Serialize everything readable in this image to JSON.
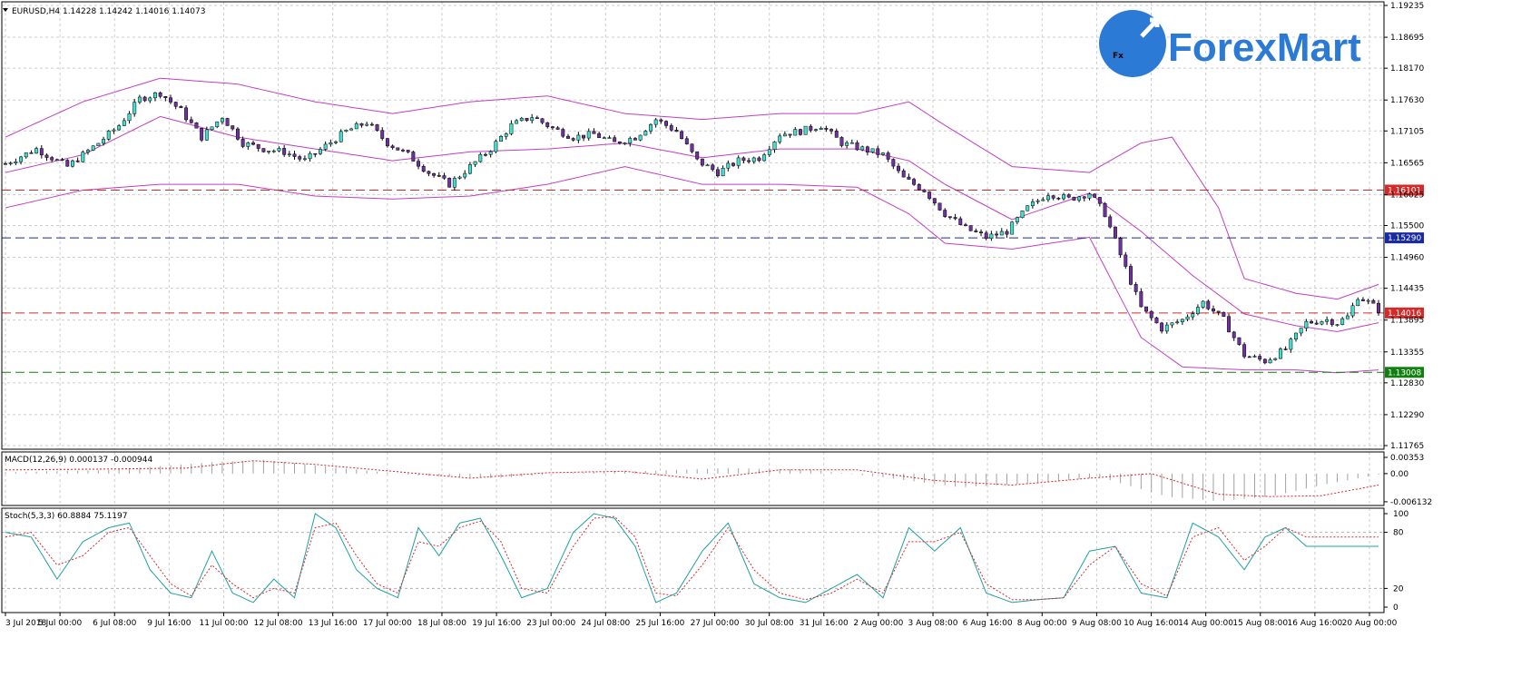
{
  "header": {
    "symbol_line": "EURUSD,H4  1.14228 1.14242 1.14016 1.14073",
    "dropdown_icon": "triangle-down-icon"
  },
  "logo": {
    "badge": "Fx",
    "brand": "ForexMart",
    "colors": {
      "badge": "#2b7ad6",
      "text": "#2b7ad6"
    }
  },
  "colors": {
    "bull": "#40e0d0",
    "bear": "#7030a0",
    "bands": "#c040c0",
    "level_red": "#d42a2a",
    "level_blue": "#1a2aa0",
    "level_green": "#108010",
    "macd_hist": "#a0a0a0",
    "macd_signal": "#d42a2a",
    "stoch_main": "#20a0a0",
    "stoch_signal": "#d42a2a",
    "grid": "#cccccc"
  },
  "x_axis_labels": [
    "3 Jul 2018",
    "5 Jul 00:00",
    "6 Jul 08:00",
    "9 Jul 16:00",
    "11 Jul 00:00",
    "12 Jul 08:00",
    "13 Jul 16:00",
    "17 Jul 00:00",
    "18 Jul 08:00",
    "19 Jul 16:00",
    "23 Jul 00:00",
    "24 Jul 08:00",
    "25 Jul 16:00",
    "27 Jul 00:00",
    "30 Jul 08:00",
    "31 Jul 16:00",
    "2 Aug 00:00",
    "3 Aug 08:00",
    "6 Aug 16:00",
    "8 Aug 00:00",
    "9 Aug 08:00",
    "10 Aug 16:00",
    "14 Aug 00:00",
    "15 Aug 08:00",
    "16 Aug 16:00",
    "20 Aug 00:00"
  ],
  "chart_data": [
    {
      "type": "candlestick",
      "title": "EURUSD,H4",
      "ylim": [
        1.11765,
        1.19235
      ],
      "y_ticks": [
        "1.19235",
        "1.18695",
        "1.18170",
        "1.17630",
        "1.17105",
        "1.16565",
        "1.16025",
        "1.15500",
        "1.14960",
        "1.14435",
        "1.13895",
        "1.13355",
        "1.12830",
        "1.12290",
        "1.11765"
      ],
      "grid": true,
      "levels": [
        {
          "value": 1.16101,
          "label": "1.16101",
          "style": "red"
        },
        {
          "value": 1.1529,
          "label": "1.15290",
          "style": "blue"
        },
        {
          "value": 1.14016,
          "label": "1.14016",
          "style": "red"
        },
        {
          "value": 1.13008,
          "label": "1.13008",
          "style": "green"
        }
      ],
      "close_path": [
        [
          0,
          1.1655
        ],
        [
          6,
          1.168
        ],
        [
          12,
          1.165
        ],
        [
          18,
          1.169
        ],
        [
          22,
          1.172
        ],
        [
          26,
          1.1765
        ],
        [
          30,
          1.1775
        ],
        [
          34,
          1.1745
        ],
        [
          38,
          1.17
        ],
        [
          42,
          1.1735
        ],
        [
          46,
          1.169
        ],
        [
          50,
          1.168
        ],
        [
          54,
          1.1675
        ],
        [
          58,
          1.166
        ],
        [
          62,
          1.1685
        ],
        [
          66,
          1.171
        ],
        [
          70,
          1.1725
        ],
        [
          74,
          1.169
        ],
        [
          78,
          1.167
        ],
        [
          82,
          1.164
        ],
        [
          86,
          1.162
        ],
        [
          90,
          1.165
        ],
        [
          94,
          1.168
        ],
        [
          98,
          1.172
        ],
        [
          102,
          1.1735
        ],
        [
          106,
          1.1715
        ],
        [
          110,
          1.17
        ],
        [
          114,
          1.1705
        ],
        [
          118,
          1.169
        ],
        [
          122,
          1.17
        ],
        [
          126,
          1.173
        ],
        [
          130,
          1.171
        ],
        [
          134,
          1.166
        ],
        [
          138,
          1.164
        ],
        [
          142,
          1.166
        ],
        [
          146,
          1.1665
        ],
        [
          150,
          1.1705
        ],
        [
          154,
          1.171
        ],
        [
          158,
          1.172
        ],
        [
          162,
          1.169
        ],
        [
          166,
          1.168
        ],
        [
          170,
          1.167
        ],
        [
          174,
          1.163
        ],
        [
          178,
          1.161
        ],
        [
          182,
          1.157
        ],
        [
          186,
          1.1545
        ],
        [
          190,
          1.153
        ],
        [
          194,
          1.154
        ],
        [
          198,
          1.158
        ],
        [
          202,
          1.1605
        ],
        [
          206,
          1.1595
        ],
        [
          210,
          1.1605
        ],
        [
          213,
          1.157
        ],
        [
          216,
          1.15
        ],
        [
          220,
          1.141
        ],
        [
          224,
          1.1375
        ],
        [
          228,
          1.139
        ],
        [
          232,
          1.142
        ],
        [
          236,
          1.139
        ],
        [
          240,
          1.133
        ],
        [
          244,
          1.132
        ],
        [
          248,
          1.134
        ],
        [
          252,
          1.1385
        ],
        [
          256,
          1.139
        ],
        [
          258,
          1.1385
        ],
        [
          260,
          1.1395
        ],
        [
          262,
          1.143
        ],
        [
          264,
          1.142
        ],
        [
          266,
          1.1407
        ]
      ],
      "bollinger_upper": [
        [
          0,
          1.17
        ],
        [
          15,
          1.176
        ],
        [
          30,
          1.18
        ],
        [
          45,
          1.179
        ],
        [
          60,
          1.176
        ],
        [
          75,
          1.174
        ],
        [
          90,
          1.176
        ],
        [
          105,
          1.177
        ],
        [
          120,
          1.174
        ],
        [
          135,
          1.173
        ],
        [
          150,
          1.174
        ],
        [
          165,
          1.174
        ],
        [
          175,
          1.176
        ],
        [
          182,
          1.172
        ],
        [
          195,
          1.165
        ],
        [
          210,
          1.164
        ],
        [
          220,
          1.169
        ],
        [
          226,
          1.17
        ],
        [
          235,
          1.158
        ],
        [
          240,
          1.146
        ],
        [
          250,
          1.1435
        ],
        [
          258,
          1.1425
        ],
        [
          266,
          1.145
        ]
      ],
      "bollinger_middle": [
        [
          0,
          1.164
        ],
        [
          15,
          1.167
        ],
        [
          30,
          1.1735
        ],
        [
          45,
          1.17
        ],
        [
          60,
          1.168
        ],
        [
          75,
          1.166
        ],
        [
          90,
          1.1675
        ],
        [
          105,
          1.168
        ],
        [
          120,
          1.169
        ],
        [
          135,
          1.1665
        ],
        [
          150,
          1.168
        ],
        [
          165,
          1.168
        ],
        [
          175,
          1.166
        ],
        [
          182,
          1.162
        ],
        [
          195,
          1.156
        ],
        [
          210,
          1.1605
        ],
        [
          220,
          1.154
        ],
        [
          230,
          1.1465
        ],
        [
          240,
          1.14
        ],
        [
          250,
          1.138
        ],
        [
          258,
          1.137
        ],
        [
          266,
          1.1385
        ]
      ],
      "bollinger_lower": [
        [
          0,
          1.158
        ],
        [
          15,
          1.161
        ],
        [
          30,
          1.162
        ],
        [
          45,
          1.162
        ],
        [
          60,
          1.16
        ],
        [
          75,
          1.1595
        ],
        [
          90,
          1.16
        ],
        [
          105,
          1.162
        ],
        [
          120,
          1.165
        ],
        [
          135,
          1.162
        ],
        [
          150,
          1.162
        ],
        [
          165,
          1.1615
        ],
        [
          175,
          1.157
        ],
        [
          182,
          1.152
        ],
        [
          195,
          1.151
        ],
        [
          210,
          1.153
        ],
        [
          220,
          1.136
        ],
        [
          228,
          1.131
        ],
        [
          240,
          1.1305
        ],
        [
          250,
          1.1305
        ],
        [
          258,
          1.13
        ],
        [
          266,
          1.1305
        ]
      ]
    },
    {
      "type": "macd",
      "title": "MACD(12,26,9) 0.000137 -0.000944",
      "ylim": [
        -0.00615,
        0.00353
      ],
      "y_ticks": [
        "0.00353",
        "0.00",
        "-0.006132"
      ],
      "histogram": [
        [
          0,
          0.0003
        ],
        [
          20,
          0.0008
        ],
        [
          40,
          0.0025
        ],
        [
          50,
          0.003
        ],
        [
          65,
          0.0012
        ],
        [
          80,
          -0.0004
        ],
        [
          95,
          -0.001
        ],
        [
          110,
          0.0002
        ],
        [
          125,
          0.0006
        ],
        [
          140,
          0.0012
        ],
        [
          155,
          0.0009
        ],
        [
          170,
          -0.0008
        ],
        [
          185,
          -0.003
        ],
        [
          200,
          -0.002
        ],
        [
          212,
          -0.0008
        ],
        [
          225,
          -0.005
        ],
        [
          235,
          -0.006
        ],
        [
          245,
          -0.005
        ],
        [
          255,
          -0.0025
        ],
        [
          266,
          -0.0002
        ]
      ],
      "signal": [
        [
          0,
          0.0008
        ],
        [
          20,
          0.001
        ],
        [
          35,
          0.0012
        ],
        [
          48,
          0.0028
        ],
        [
          60,
          0.002
        ],
        [
          75,
          0.0005
        ],
        [
          90,
          -0.001
        ],
        [
          105,
          0.0002
        ],
        [
          120,
          0.0005
        ],
        [
          135,
          -0.0012
        ],
        [
          150,
          0.0008
        ],
        [
          165,
          0.0008
        ],
        [
          180,
          -0.0015
        ],
        [
          195,
          -0.0025
        ],
        [
          210,
          -0.001
        ],
        [
          222,
          0.0
        ],
        [
          235,
          -0.0045
        ],
        [
          245,
          -0.005
        ],
        [
          255,
          -0.0048
        ],
        [
          266,
          -0.0025
        ]
      ]
    },
    {
      "type": "stochastic",
      "title": "Stoch(5,3,3) 60.8884 75.1197",
      "ylim": [
        0,
        100
      ],
      "y_ticks": [
        "100",
        "80",
        "20",
        "0"
      ],
      "main": [
        [
          0,
          80
        ],
        [
          5,
          75
        ],
        [
          10,
          30
        ],
        [
          15,
          70
        ],
        [
          20,
          85
        ],
        [
          24,
          90
        ],
        [
          28,
          40
        ],
        [
          32,
          15
        ],
        [
          36,
          10
        ],
        [
          40,
          60
        ],
        [
          44,
          15
        ],
        [
          48,
          5
        ],
        [
          52,
          30
        ],
        [
          56,
          10
        ],
        [
          60,
          100
        ],
        [
          64,
          85
        ],
        [
          68,
          40
        ],
        [
          72,
          20
        ],
        [
          76,
          10
        ],
        [
          80,
          85
        ],
        [
          84,
          55
        ],
        [
          88,
          90
        ],
        [
          92,
          95
        ],
        [
          96,
          55
        ],
        [
          100,
          10
        ],
        [
          105,
          20
        ],
        [
          110,
          80
        ],
        [
          114,
          100
        ],
        [
          118,
          95
        ],
        [
          122,
          65
        ],
        [
          126,
          5
        ],
        [
          130,
          15
        ],
        [
          135,
          60
        ],
        [
          140,
          90
        ],
        [
          145,
          25
        ],
        [
          150,
          10
        ],
        [
          155,
          5
        ],
        [
          160,
          20
        ],
        [
          165,
          35
        ],
        [
          170,
          10
        ],
        [
          175,
          85
        ],
        [
          180,
          60
        ],
        [
          185,
          85
        ],
        [
          190,
          15
        ],
        [
          195,
          5
        ],
        [
          200,
          8
        ],
        [
          205,
          10
        ],
        [
          210,
          60
        ],
        [
          215,
          65
        ],
        [
          220,
          15
        ],
        [
          225,
          10
        ],
        [
          230,
          90
        ],
        [
          235,
          75
        ],
        [
          240,
          40
        ],
        [
          244,
          75
        ],
        [
          248,
          85
        ],
        [
          252,
          65
        ]
      ],
      "signal": [
        [
          0,
          75
        ],
        [
          5,
          80
        ],
        [
          10,
          45
        ],
        [
          15,
          55
        ],
        [
          20,
          80
        ],
        [
          24,
          85
        ],
        [
          28,
          55
        ],
        [
          32,
          25
        ],
        [
          36,
          12
        ],
        [
          40,
          45
        ],
        [
          44,
          25
        ],
        [
          48,
          10
        ],
        [
          52,
          20
        ],
        [
          56,
          15
        ],
        [
          60,
          85
        ],
        [
          64,
          90
        ],
        [
          68,
          55
        ],
        [
          72,
          25
        ],
        [
          76,
          15
        ],
        [
          80,
          70
        ],
        [
          84,
          65
        ],
        [
          88,
          85
        ],
        [
          92,
          92
        ],
        [
          96,
          70
        ],
        [
          100,
          20
        ],
        [
          105,
          15
        ],
        [
          110,
          65
        ],
        [
          114,
          95
        ],
        [
          118,
          97
        ],
        [
          122,
          75
        ],
        [
          126,
          15
        ],
        [
          130,
          12
        ],
        [
          135,
          45
        ],
        [
          140,
          85
        ],
        [
          145,
          40
        ],
        [
          150,
          15
        ],
        [
          155,
          8
        ],
        [
          160,
          15
        ],
        [
          165,
          30
        ],
        [
          170,
          15
        ],
        [
          175,
          70
        ],
        [
          180,
          70
        ],
        [
          185,
          80
        ],
        [
          190,
          25
        ],
        [
          195,
          8
        ],
        [
          200,
          8
        ],
        [
          205,
          10
        ],
        [
          210,
          45
        ],
        [
          215,
          65
        ],
        [
          220,
          25
        ],
        [
          225,
          12
        ],
        [
          230,
          75
        ],
        [
          235,
          85
        ],
        [
          240,
          50
        ],
        [
          244,
          65
        ],
        [
          248,
          85
        ],
        [
          252,
          75
        ]
      ]
    }
  ]
}
